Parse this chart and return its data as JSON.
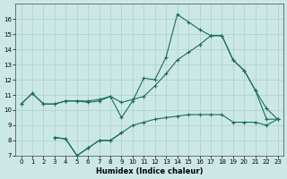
{
  "xlabel": "Humidex (Indice chaleur)",
  "background_color": "#cce8e6",
  "grid_color": "#aacfcc",
  "line_color": "#1a6b60",
  "x_values": [
    0,
    1,
    2,
    3,
    4,
    5,
    6,
    7,
    8,
    9,
    10,
    11,
    12,
    13,
    14,
    15,
    16,
    17,
    18,
    19,
    20,
    21,
    22,
    23
  ],
  "line1": [
    10.4,
    11.1,
    10.4,
    10.4,
    10.6,
    10.6,
    10.5,
    10.6,
    10.9,
    9.5,
    10.6,
    12.1,
    12.0,
    13.5,
    16.3,
    15.8,
    15.3,
    14.9,
    14.9,
    13.3,
    12.6,
    11.3,
    10.1,
    9.4
  ],
  "line2": [
    10.4,
    11.1,
    10.4,
    10.4,
    10.6,
    10.6,
    10.6,
    10.7,
    10.9,
    10.5,
    10.7,
    10.9,
    11.6,
    12.4,
    13.3,
    13.8,
    14.3,
    14.9,
    14.9,
    13.3,
    12.6,
    11.3,
    9.4,
    9.4
  ],
  "line3": [
    null,
    null,
    null,
    8.2,
    8.1,
    7.0,
    7.5,
    8.0,
    8.0,
    8.5,
    9.0,
    9.2,
    9.4,
    9.5,
    9.6,
    9.7,
    9.7,
    9.7,
    9.7,
    9.2,
    9.2,
    9.2,
    9.0,
    9.4
  ],
  "line4": [
    null,
    null,
    null,
    8.2,
    8.1,
    7.0,
    7.5,
    8.0,
    8.0,
    8.5,
    null,
    null,
    null,
    null,
    null,
    null,
    null,
    null,
    null,
    null,
    null,
    null,
    null,
    null
  ],
  "ylim": [
    7,
    17
  ],
  "xlim": [
    -0.5,
    23.5
  ],
  "yticks": [
    7,
    8,
    9,
    10,
    11,
    12,
    13,
    14,
    15,
    16
  ],
  "xticks": [
    0,
    1,
    2,
    3,
    4,
    5,
    6,
    7,
    8,
    9,
    10,
    11,
    12,
    13,
    14,
    15,
    16,
    17,
    18,
    19,
    20,
    21,
    22,
    23
  ]
}
